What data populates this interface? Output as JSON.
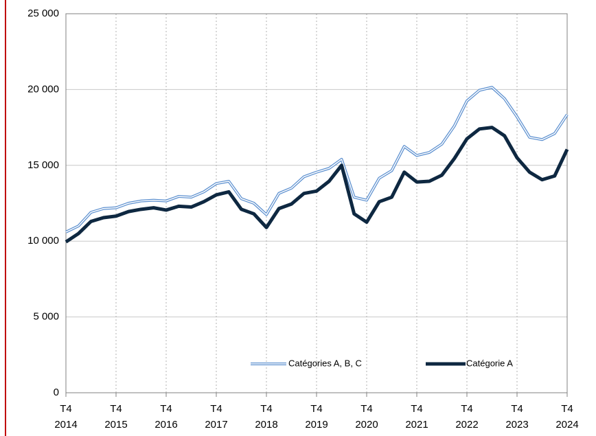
{
  "chart_data": {
    "type": "line",
    "categories": [
      "T4\n2014",
      null,
      null,
      null,
      "T4\n2015",
      null,
      null,
      null,
      "T4\n2016",
      null,
      null,
      null,
      "T4\n2017",
      null,
      null,
      null,
      "T4\n2018",
      null,
      null,
      null,
      "T4\n2019",
      null,
      null,
      null,
      "T4\n2020",
      null,
      null,
      null,
      "T4\n2021",
      null,
      null,
      null,
      "T4\n2022",
      null,
      null,
      null,
      "T4\n2023",
      null,
      null,
      null,
      "T4\n2024"
    ],
    "series": [
      {
        "name": "Catégories A, B, C",
        "color": "#5b8fcf",
        "values": [
          10600,
          11000,
          11900,
          12150,
          12200,
          12500,
          12650,
          12700,
          12650,
          12950,
          12900,
          13250,
          13800,
          13950,
          12800,
          12500,
          11750,
          13150,
          13500,
          14250,
          14550,
          14800,
          15400,
          12900,
          12700,
          14150,
          14650,
          16250,
          15650,
          15850,
          16400,
          17600,
          19250,
          19950,
          20150,
          19400,
          18200,
          16850,
          16700,
          17100,
          18350
        ]
      },
      {
        "name": "Catégorie A",
        "color": "#0e2841",
        "values": [
          9950,
          10500,
          11300,
          11550,
          11650,
          11950,
          12100,
          12200,
          12050,
          12300,
          12250,
          12600,
          13050,
          13250,
          12100,
          11800,
          10900,
          12150,
          12450,
          13150,
          13300,
          13950,
          15000,
          11800,
          11250,
          12600,
          12900,
          14550,
          13900,
          13950,
          14350,
          15450,
          16750,
          17400,
          17500,
          16950,
          15500,
          14550,
          14050,
          14300,
          16050
        ]
      }
    ],
    "ylim": [
      0,
      25000
    ],
    "yticks": [
      0,
      {
        "value": 5000,
        "label": "5 000"
      },
      {
        "value": 10000,
        "label": "10 000"
      },
      {
        "value": 15000,
        "label": "15 000"
      },
      {
        "value": 20000,
        "label": "20 000"
      },
      {
        "value": 25000,
        "label": "25 000"
      }
    ],
    "grid": true
  }
}
